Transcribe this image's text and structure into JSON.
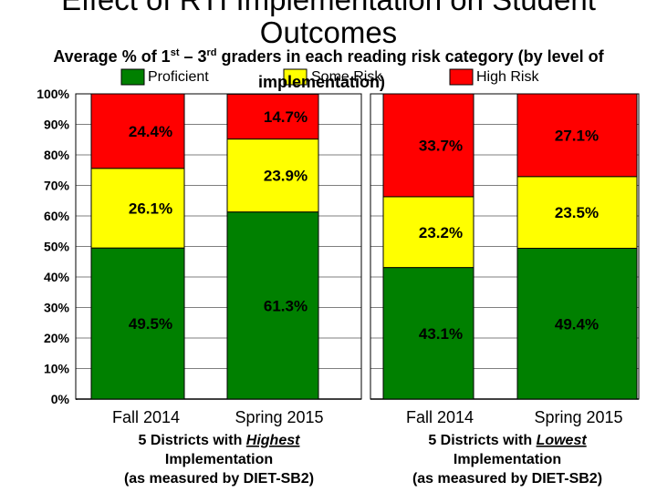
{
  "title": "Effect of RTI Implementation on Student Outcomes",
  "subtitle": {
    "part1": "Average % of 1",
    "sup1": "st",
    "part2": " – 3",
    "sup2": "rd",
    "part3": " graders in each reading risk category (by level of"
  },
  "colors": {
    "Proficient": "#008000",
    "Some Risk": "#ffff00",
    "High Risk": "#ff0000"
  },
  "chart_data": {
    "type": "bar",
    "stacked": true,
    "title": "Effect of RTI Implementation on Student Outcomes",
    "ylabel": "",
    "xlabel": "",
    "ylim": [
      0,
      100
    ],
    "yticks": [
      "0%",
      "10%",
      "20%",
      "30%",
      "40%",
      "50%",
      "60%",
      "70%",
      "80%",
      "90%",
      "100%"
    ],
    "legend": {
      "entries": [
        "Proficient",
        "Some Risk",
        "High Risk"
      ],
      "overlap_text": "implementation)"
    },
    "panels": [
      {
        "group_label": [
          "5 Districts with Highest",
          "Implementation",
          "(as measured by DIET-SB2)"
        ],
        "group_emphasis": "Highest",
        "categories": [
          "Fall 2014",
          "Spring 2015"
        ],
        "series": [
          {
            "name": "Proficient",
            "values": [
              49.5,
              61.3
            ],
            "labels": [
              "49.5%",
              "61.3%"
            ]
          },
          {
            "name": "Some Risk",
            "values": [
              26.1,
              23.9
            ],
            "labels": [
              "26.1%",
              "23.9%"
            ]
          },
          {
            "name": "High Risk",
            "values": [
              24.4,
              14.7
            ],
            "labels": [
              "24.4%",
              "14.7%"
            ]
          }
        ]
      },
      {
        "group_label": [
          "5 Districts with Lowest",
          "Implementation",
          "(as measured by DIET-SB2)"
        ],
        "group_emphasis": "Lowest",
        "categories": [
          "Fall 2014",
          "Spring 2015"
        ],
        "series": [
          {
            "name": "Proficient",
            "values": [
              43.1,
              49.4
            ],
            "labels": [
              "43.1%",
              "49.4%"
            ]
          },
          {
            "name": "Some Risk",
            "values": [
              23.2,
              23.5
            ],
            "labels": [
              "23.2%",
              "23.5%"
            ]
          },
          {
            "name": "High Risk",
            "values": [
              33.7,
              27.1
            ],
            "labels": [
              "33.7%",
              "27.1%"
            ]
          }
        ]
      }
    ]
  }
}
